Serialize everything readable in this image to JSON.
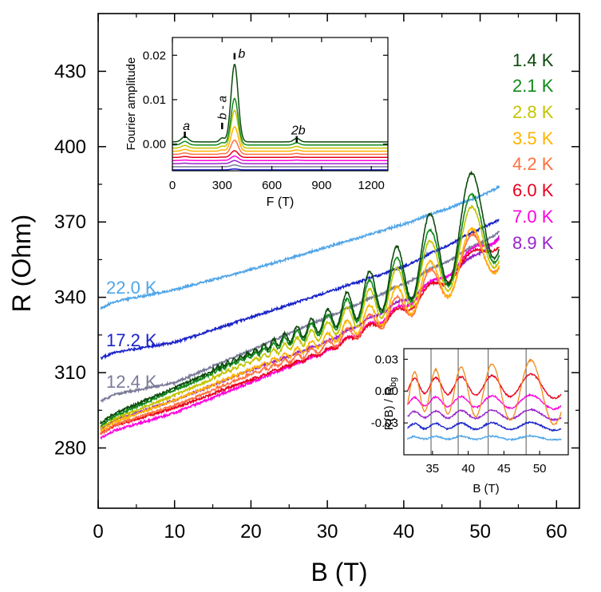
{
  "chart_data": [
    {
      "type": "line",
      "title": "",
      "xlabel": "B (T)",
      "ylabel": "R (Ohm)",
      "xlim": [
        0,
        63
      ],
      "ylim": [
        256,
        453
      ],
      "xticks": [
        0,
        10,
        20,
        30,
        40,
        50,
        60
      ],
      "yticks": [
        280,
        310,
        340,
        370,
        400,
        430
      ],
      "legend_position": "right",
      "series": [
        {
          "name": "1.4 K",
          "color": "#0d4a0d",
          "base": [
            [
              0,
              291
            ],
            [
              10,
              304
            ],
            [
              20,
              317
            ],
            [
              30,
              327
            ],
            [
              40,
              338
            ],
            [
              50,
              351
            ],
            [
              52.5,
              357
            ]
          ],
          "osc": [
            [
              20,
              1.5
            ],
            [
              30,
              8
            ],
            [
              40,
              25
            ],
            [
              50,
              42
            ],
            [
              52.5,
              45
            ]
          ]
        },
        {
          "name": "2.1 K",
          "color": "#0f8a1a",
          "base": [
            [
              0,
              290
            ],
            [
              10,
              303
            ],
            [
              20,
              316
            ],
            [
              30,
              326
            ],
            [
              40,
              337
            ],
            [
              50,
              350
            ],
            [
              52.5,
              355
            ]
          ],
          "osc": [
            [
              20,
              1.2
            ],
            [
              30,
              7
            ],
            [
              40,
              21
            ],
            [
              50,
              34
            ],
            [
              52.5,
              36
            ]
          ]
        },
        {
          "name": "2.8 K",
          "color": "#c4c400",
          "base": [
            [
              0,
              289
            ],
            [
              10,
              301
            ],
            [
              20,
              314
            ],
            [
              30,
              324
            ],
            [
              40,
              335
            ],
            [
              50,
              348
            ],
            [
              52.5,
              353
            ]
          ],
          "osc": [
            [
              20,
              1
            ],
            [
              30,
              6
            ],
            [
              40,
              19
            ],
            [
              50,
              31
            ],
            [
              52.5,
              33
            ]
          ]
        },
        {
          "name": "3.5 K",
          "color": "#ffb300",
          "base": [
            [
              0,
              288
            ],
            [
              10,
              299
            ],
            [
              20,
              311
            ],
            [
              30,
              321
            ],
            [
              40,
              332
            ],
            [
              50,
              346
            ],
            [
              52.5,
              351
            ]
          ],
          "osc": [
            [
              20,
              0.7
            ],
            [
              30,
              4.5
            ],
            [
              40,
              14
            ],
            [
              50,
              24
            ],
            [
              52.5,
              26
            ]
          ]
        },
        {
          "name": "4.2 K",
          "color": "#ff7040",
          "base": [
            [
              0,
              287
            ],
            [
              10,
              297
            ],
            [
              20,
              309
            ],
            [
              30,
              319
            ],
            [
              40,
              331
            ],
            [
              50,
              347
            ],
            [
              52.5,
              351
            ]
          ],
          "osc": [
            [
              20,
              0.5
            ],
            [
              30,
              3.5
            ],
            [
              40,
              11
            ],
            [
              50,
              21
            ],
            [
              52.5,
              22
            ]
          ]
        },
        {
          "name": "6.0 K",
          "color": "#e8001e",
          "base": [
            [
              0,
              287
            ],
            [
              10,
              296
            ],
            [
              20,
              307
            ],
            [
              30,
              318
            ],
            [
              40,
              333
            ],
            [
              50,
              355
            ],
            [
              52.5,
              360
            ]
          ],
          "osc": [
            [
              20,
              0.3
            ],
            [
              30,
              1.5
            ],
            [
              40,
              4
            ],
            [
              50,
              6
            ],
            [
              52.5,
              6
            ]
          ]
        },
        {
          "name": "7.0 K",
          "color": "#ff00dd",
          "base": [
            [
              0,
              285
            ],
            [
              10,
              294
            ],
            [
              20,
              306
            ],
            [
              30,
              318
            ],
            [
              40,
              335
            ],
            [
              50,
              358
            ],
            [
              52.5,
              363
            ]
          ],
          "osc": [
            [
              20,
              0.2
            ],
            [
              30,
              1
            ],
            [
              40,
              3
            ],
            [
              50,
              4
            ],
            [
              52.5,
              4
            ]
          ]
        },
        {
          "name": "8.9 K",
          "color": "#9922cc",
          "base": [
            [
              0,
              289
            ],
            [
              10,
              299
            ],
            [
              20,
              311
            ],
            [
              30,
              322
            ],
            [
              40,
              338
            ],
            [
              50,
              356
            ],
            [
              52.5,
              364
            ]
          ],
          "osc": [
            [
              20,
              0.1
            ],
            [
              30,
              0.6
            ],
            [
              40,
              1.6
            ],
            [
              50,
              2.2
            ],
            [
              52.5,
              2.4
            ]
          ]
        },
        {
          "name": "12.4 K",
          "color": "#7a7a98",
          "base": [
            [
              0,
              300
            ],
            [
              10,
              306
            ],
            [
              20,
              319
            ],
            [
              30,
              332
            ],
            [
              40,
              345
            ],
            [
              50,
              361
            ],
            [
              52.5,
              366
            ]
          ],
          "osc": [
            [
              20,
              0
            ],
            [
              30,
              0.3
            ],
            [
              40,
              0.6
            ],
            [
              50,
              0.8
            ],
            [
              52.5,
              0.8
            ]
          ]
        },
        {
          "name": "17.2 K",
          "color": "#1a23c8",
          "base": [
            [
              0,
              317
            ],
            [
              10,
              322
            ],
            [
              20,
              332
            ],
            [
              30,
              342
            ],
            [
              40,
              352
            ],
            [
              50,
              367
            ],
            [
              52.5,
              371
            ]
          ],
          "osc": [
            [
              20,
              0
            ],
            [
              30,
              0.2
            ],
            [
              40,
              0.3
            ],
            [
              50,
              0.4
            ],
            [
              52.5,
              0.4
            ]
          ]
        },
        {
          "name": "22.0 K",
          "color": "#4fa5e8",
          "base": [
            [
              0,
              337
            ],
            [
              10,
              343
            ],
            [
              20,
              351
            ],
            [
              30,
              360
            ],
            [
              40,
              369
            ],
            [
              50,
              380
            ],
            [
              52.5,
              384
            ]
          ],
          "osc": [
            [
              20,
              0
            ],
            [
              30,
              0.1
            ],
            [
              40,
              0.2
            ],
            [
              50,
              0.3
            ],
            [
              52.5,
              0.3
            ]
          ]
        }
      ],
      "labels": [
        "1.4 K",
        "2.1 K",
        "2.8 K",
        "3.5 K",
        "4.2 K",
        "6.0 K",
        "7.0 K",
        "8.9 K",
        "22.0 K",
        "17.2 K",
        "12.4 K"
      ]
    },
    {
      "type": "line",
      "title": "",
      "xlabel": "F (T)",
      "ylabel": "Fourier amplitude",
      "xlim": [
        0,
        1300
      ],
      "ylim": [
        -0.006,
        0.024
      ],
      "xticks": [
        0,
        300,
        600,
        900,
        1200
      ],
      "yticks": [
        "0.00",
        "0.01",
        "0.02"
      ],
      "ytick_values": [
        0,
        0.01,
        0.02
      ],
      "annotations": [
        {
          "text": "a",
          "x": 75
        },
        {
          "text": "b - a",
          "x": 300
        },
        {
          "text": "b",
          "x": 375
        },
        {
          "text": "2b",
          "x": 750
        }
      ],
      "series": [
        {
          "name": "1.4 K",
          "offset": 0.0005,
          "peak_b": 0.0175,
          "peak_a": 0.0012,
          "peak_2b": 0.0008
        },
        {
          "name": "2.1 K",
          "offset": -0.0002,
          "peak_b": 0.0105,
          "peak_a": 0.0008,
          "peak_2b": 0.0005
        },
        {
          "name": "2.8 K",
          "offset": -0.0009,
          "peak_b": 0.0085,
          "peak_a": 0.0006,
          "peak_2b": 0.0004
        },
        {
          "name": "3.5 K",
          "offset": -0.0016,
          "peak_b": 0.0055,
          "peak_a": 0.0004,
          "peak_2b": 0.0003
        },
        {
          "name": "4.2 K",
          "offset": -0.0023,
          "peak_b": 0.0032,
          "peak_a": 0.0003,
          "peak_2b": 0.0002
        },
        {
          "name": "6.0 K",
          "offset": -0.003,
          "peak_b": 0.0015,
          "peak_a": 0.0002,
          "peak_2b": 0.0001
        },
        {
          "name": "7.0 K",
          "offset": -0.0037,
          "peak_b": 0.001,
          "peak_a": 0.0001,
          "peak_2b": 0.0001
        },
        {
          "name": "8.9 K",
          "offset": -0.0044,
          "peak_b": 0.0007,
          "peak_a": 0.0001,
          "peak_2b": 0.0
        },
        {
          "name": "12.4 K",
          "offset": -0.0051,
          "peak_b": 0.0004,
          "peak_a": 0.0,
          "peak_2b": 0.0
        },
        {
          "name": "17.2 K",
          "offset": -0.0058,
          "peak_b": 0.0002,
          "peak_a": 0.0,
          "peak_2b": 0.0
        }
      ]
    },
    {
      "type": "line",
      "title": "",
      "xlabel": "B (T)",
      "ylabel": "R(B) / R",
      "ylabel_sub": "bg",
      "xlim": [
        31,
        54
      ],
      "ylim": [
        -0.06,
        0.04
      ],
      "xticks": [
        35,
        40,
        45,
        50
      ],
      "yticks": [
        "0.03",
        "0.00",
        "-0.03"
      ],
      "ytick_values": [
        0.03,
        0,
        -0.03
      ],
      "vertical_lines": [
        34.8,
        38.6,
        42.8,
        48.1
      ],
      "series": [
        {
          "name": "3.5 K",
          "color": "#f08a1e",
          "offset": 0.0,
          "amp": 0.032
        },
        {
          "name": "6.0 K",
          "color": "#e8001e",
          "offset": 0.005,
          "amp": 0.012
        },
        {
          "name": "7.0 K",
          "color": "#ff00dd",
          "offset": -0.01,
          "amp": 0.007
        },
        {
          "name": "8.9 K",
          "color": "#9922cc",
          "offset": -0.022,
          "amp": 0.005
        },
        {
          "name": "17.2 K",
          "color": "#1a23c8",
          "offset": -0.033,
          "amp": 0.004
        },
        {
          "name": "22.0 K",
          "color": "#4fa5e8",
          "offset": -0.044,
          "amp": 0.002
        }
      ]
    }
  ]
}
